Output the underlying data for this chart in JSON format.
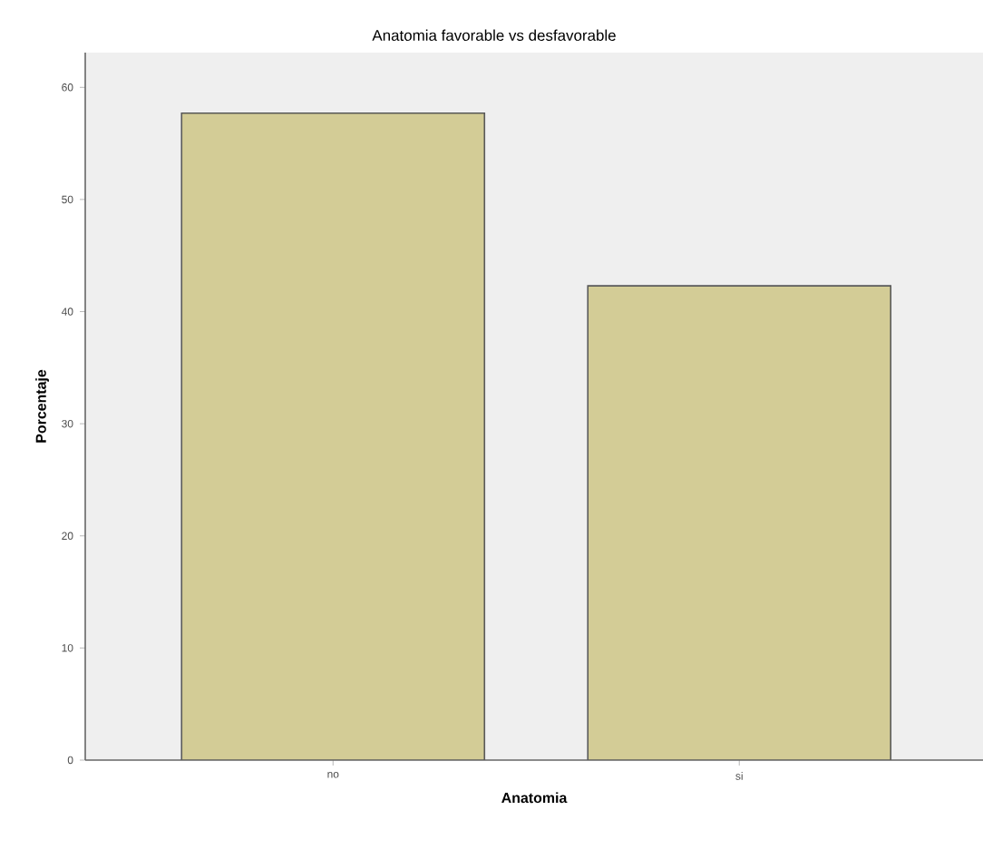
{
  "chart_data": {
    "type": "bar",
    "title": "Anatomia favorable vs desfavorable",
    "xlabel": "Anatomia",
    "ylabel": "Porcentaje",
    "categories": [
      "no",
      "si"
    ],
    "values": [
      57.7,
      42.3
    ],
    "color": "#d3cc96",
    "ylim": [
      0,
      63.1
    ],
    "yticks": [
      0,
      10,
      20,
      30,
      40,
      50,
      60
    ],
    "grid": false
  }
}
